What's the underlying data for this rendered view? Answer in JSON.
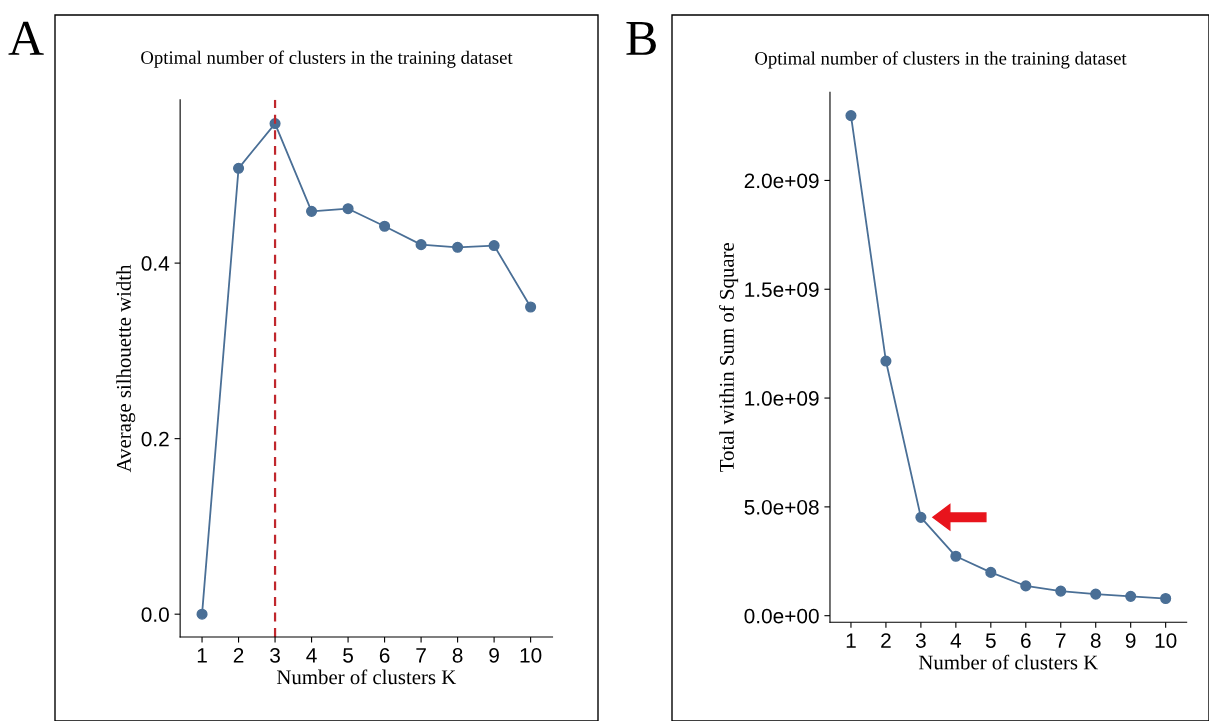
{
  "chart_data": [
    {
      "type": "line",
      "title": "Optimal number of clusters in the training dataset",
      "xlabel": "Number of clusters K",
      "ylabel": "Average silhouette width",
      "categories": [
        "1",
        "2",
        "3",
        "4",
        "5",
        "6",
        "7",
        "8",
        "9",
        "10"
      ],
      "series": [
        {
          "color": "#4a6f96",
          "values": [
            0.0,
            0.508,
            0.559,
            0.459,
            0.462,
            0.442,
            0.421,
            0.418,
            0.42,
            0.35
          ]
        }
      ],
      "ylim": [
        -0.026,
        0.586
      ],
      "yticks": [
        {
          "value": 0,
          "label": "0.0"
        },
        0.2,
        0.4
      ],
      "ref_lines": [
        {
          "axis": "x",
          "value": "3",
          "color": "#c0272d",
          "line_style": "dashed"
        }
      ],
      "annotations": [
        "A"
      ],
      "marker": "circle",
      "grid": false,
      "legend": false
    },
    {
      "type": "line",
      "title": "Optimal number of clusters in the training dataset",
      "xlabel": "Number of clusters K",
      "ylabel": "Total within Sum of Square",
      "categories": [
        "1",
        "2",
        "3",
        "4",
        "5",
        "6",
        "7",
        "8",
        "9",
        "10"
      ],
      "series": [
        {
          "color": "#4a6f96",
          "values": [
            2298000000,
            1170000000,
            452000000,
            273000000,
            199000000,
            137000000,
            113000000,
            99000000,
            89000000,
            79000000
          ]
        }
      ],
      "ylim": [
        -30000000,
        2405000000
      ],
      "yticks": [
        {
          "value": 0,
          "label": "0.0e+00"
        },
        {
          "value": 500000000,
          "label": "5.0e+08"
        },
        {
          "value": 1000000000,
          "label": "1.0e+09"
        },
        {
          "value": 1500000000,
          "label": "1.5e+09"
        },
        {
          "value": 2000000000,
          "label": "2.0e+09"
        }
      ],
      "annotations": [
        "B"
      ],
      "marker": "circle",
      "grid": false,
      "legend": false
    }
  ]
}
